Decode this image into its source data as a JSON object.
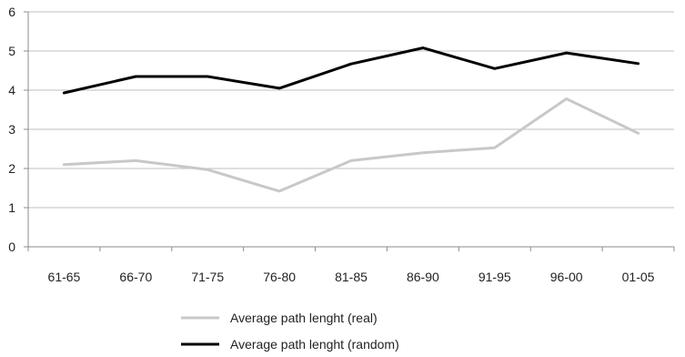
{
  "chart_data": {
    "type": "line",
    "title": "",
    "xlabel": "",
    "ylabel": "",
    "categories": [
      "61-65",
      "66-70",
      "71-75",
      "76-80",
      "81-85",
      "86-90",
      "91-95",
      "96-00",
      "01-05"
    ],
    "ylim": [
      0,
      6
    ],
    "yticks": [
      "0",
      "1",
      "2",
      "3",
      "4",
      "5",
      "6"
    ],
    "grid": true,
    "legend_position": "bottom",
    "series": [
      {
        "name": "Average path lenght (real)",
        "color": "#c8c8c8",
        "values": [
          2.1,
          2.2,
          1.97,
          1.42,
          2.2,
          2.4,
          2.53,
          3.78,
          2.9
        ]
      },
      {
        "name": "Average path lenght (random)",
        "color": "#000000",
        "values": [
          3.93,
          4.35,
          4.35,
          4.05,
          4.67,
          5.08,
          4.55,
          4.95,
          4.68
        ]
      }
    ]
  }
}
